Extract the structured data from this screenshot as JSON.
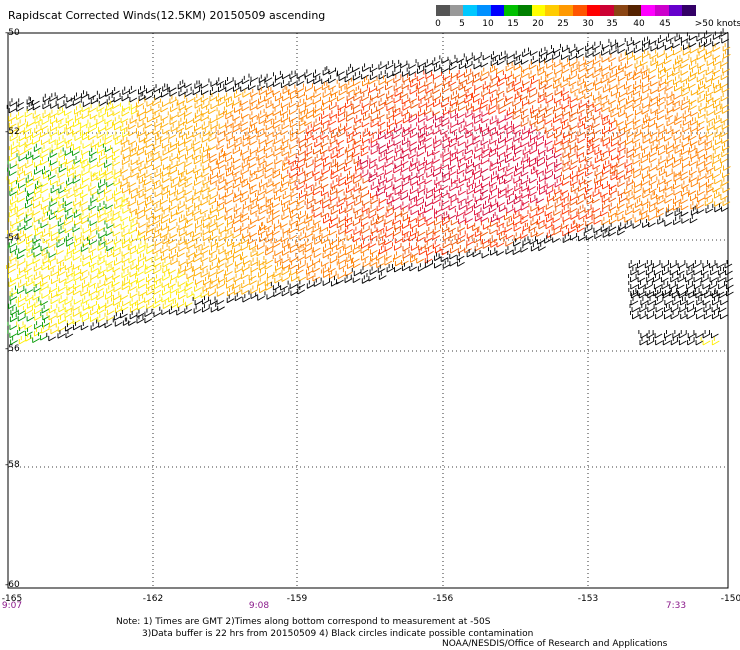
{
  "title": "Rapidscat Corrected Winds(12.5KM) 20150509 ascending",
  "legend": {
    "labels": [
      "0",
      "5",
      "10",
      "15",
      "20",
      "25",
      "30",
      "35",
      "40",
      "45",
      ">50 knots"
    ],
    "colors": [
      "#555555",
      "#999999",
      "#00c8ff",
      "#0090ff",
      "#0000ff",
      "#00c000",
      "#008000",
      "#ffff00",
      "#ffcc00",
      "#ff9900",
      "#ff5500",
      "#ff0000",
      "#cc0033",
      "#8b4513",
      "#552200",
      "#ff00ff",
      "#cc00cc",
      "#6600cc",
      "#330066"
    ]
  },
  "map": {
    "lat_labels": [
      "-50",
      "-52",
      "-54",
      "-56",
      "-58",
      "-60"
    ],
    "lon_labels": [
      "-165",
      "-162",
      "-159",
      "-156",
      "-153",
      "-150"
    ],
    "time_labels": [
      "9:07",
      "9:08",
      "7:33"
    ]
  },
  "notes": [
    "Note: 1) Times are GMT 2)Times along bottom correspond to measurement at -50S",
    "3)Data buffer is 22 hrs from 20150509 4) Black circles indicate possible contamination"
  ],
  "credit": "NOAA/NESDIS/Office of Research and Applications"
}
